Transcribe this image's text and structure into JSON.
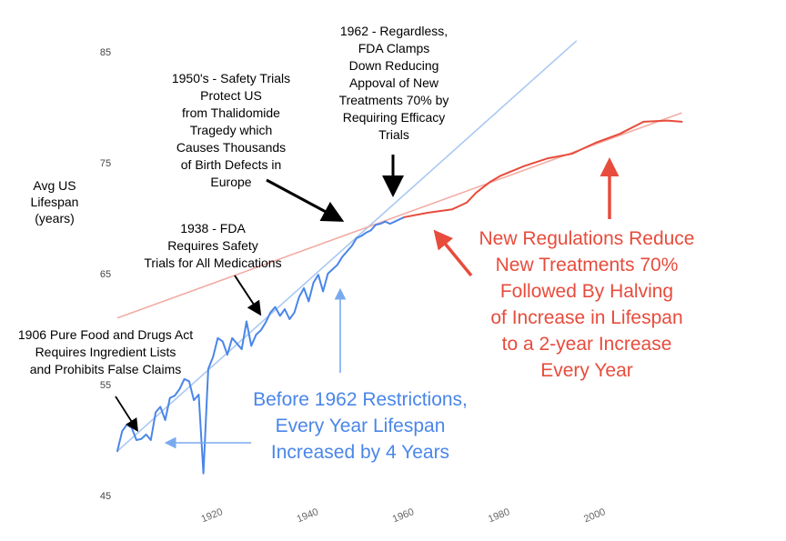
{
  "chart_data": {
    "type": "line",
    "title": "",
    "xlabel": "",
    "ylabel": [
      "Avg US",
      "Lifespan",
      "(years)"
    ],
    "xlim": [
      1900,
      2020
    ],
    "ylim": [
      45,
      85
    ],
    "xticks": [
      1920,
      1940,
      1960,
      1980,
      2000
    ],
    "yticks": [
      45,
      55,
      65,
      75,
      85
    ],
    "grid": false,
    "series": [
      {
        "name": "",
        "color": "#4a86e8",
        "x": [
          1900,
          1901,
          1902,
          1903,
          1904,
          1905,
          1906,
          1907,
          1908,
          1909,
          1910,
          1911,
          1912,
          1913,
          1914,
          1915,
          1916,
          1917,
          1918,
          1919,
          1920,
          1921,
          1922,
          1923,
          1924,
          1925,
          1926,
          1927,
          1928,
          1929,
          1930,
          1931,
          1932,
          1933,
          1934,
          1935,
          1936,
          1937,
          1938,
          1939,
          1940,
          1941,
          1942,
          1943,
          1944,
          1945,
          1946,
          1947,
          1948,
          1949,
          1950,
          1951,
          1952,
          1953,
          1954,
          1955,
          1956,
          1957,
          1958,
          1959,
          1960
        ],
        "y": [
          49.0,
          50.8,
          51.4,
          51.1,
          50.0,
          50.1,
          50.5,
          50.0,
          52.5,
          53.0,
          51.8,
          53.8,
          54.0,
          54.6,
          55.5,
          55.3,
          53.6,
          54.1,
          47.0,
          56.4,
          57.5,
          59.2,
          58.9,
          57.7,
          59.2,
          58.7,
          58.2,
          60.7,
          58.5,
          59.5,
          59.9,
          60.6,
          61.5,
          62.0,
          61.2,
          61.8,
          60.9,
          61.5,
          62.9,
          63.7,
          62.5,
          64.2,
          64.9,
          63.4,
          65.0,
          65.4,
          65.8,
          66.5,
          67.0,
          67.5,
          68.2,
          68.4,
          68.7,
          68.9,
          69.4,
          69.5,
          69.7,
          69.5,
          69.7,
          69.9,
          70.1
        ]
      },
      {
        "name": "",
        "color": "#e74c3c",
        "x": [
          1960,
          1965,
          1970,
          1973,
          1975,
          1978,
          1980,
          1985,
          1990,
          1995,
          2000,
          2005,
          2010,
          2015,
          2018
        ],
        "y": [
          70.1,
          70.5,
          70.8,
          71.4,
          72.3,
          73.3,
          73.8,
          74.7,
          75.4,
          75.8,
          76.8,
          77.6,
          78.7,
          78.8,
          78.7
        ]
      }
    ],
    "trend_lines": [
      {
        "name": "",
        "color": "#a9c8f2",
        "from": [
          1900,
          49.0
        ],
        "to": [
          1996,
          86.0
        ]
      },
      {
        "name": "",
        "color": "#f2aca4",
        "from": [
          1900,
          61.0
        ],
        "to": [
          2018,
          79.5
        ]
      }
    ],
    "annotations": [
      {
        "id": "a1906",
        "lines": [
          "1906 Pure Food and Drugs Act",
          "Requires Ingredient Lists",
          "and Prohibits False Claims"
        ]
      },
      {
        "id": "a1938",
        "lines": [
          "1938 - FDA",
          "Requires Safety",
          "Trials for All Medications"
        ]
      },
      {
        "id": "a1950",
        "lines": [
          "1950's - Safety Trials",
          "Protect US",
          "from Thalidomide",
          "Tragedy which",
          "Causes Thousands",
          "of Birth Defects in",
          "Europe"
        ]
      },
      {
        "id": "a1962",
        "lines": [
          "1962 - Regardless,",
          "FDA Clamps",
          "Down Reducing",
          "Appoval of New",
          "Treatments 70% by",
          "Requiring Efficacy",
          "Trials"
        ]
      },
      {
        "id": "before",
        "lines": [
          "Before 1962 Restrictions,",
          "Every Year Lifespan",
          "Increased by 4 Years"
        ]
      },
      {
        "id": "after",
        "lines": [
          "New Regulations Reduce",
          "New Treatments 70%",
          "Followed By Halving",
          "of Increase in Lifespan",
          "to a 2-year Increase",
          "Every Year"
        ]
      }
    ]
  }
}
